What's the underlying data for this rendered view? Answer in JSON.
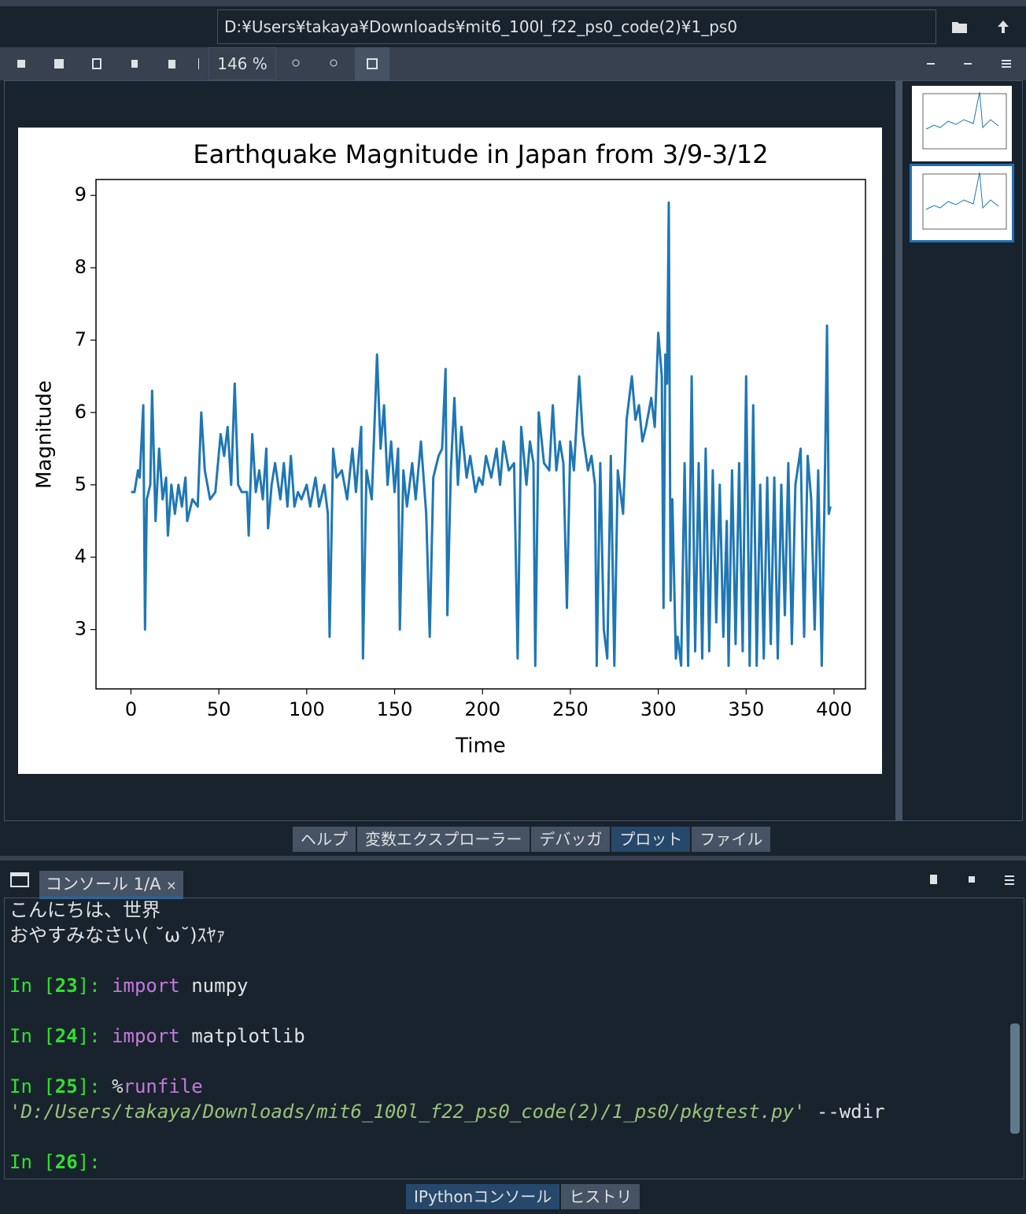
{
  "toolbar": {
    "path": "D:¥Users¥takaya¥Downloads¥mit6_100l_f22_ps0_code(2)¥1_ps0",
    "zoom": "146 %"
  },
  "pane_tabs": [
    {
      "label": "ヘルプ",
      "active": false
    },
    {
      "label": "変数エクスプローラー",
      "active": false
    },
    {
      "label": "デバッガ",
      "active": false
    },
    {
      "label": "プロット",
      "active": true
    },
    {
      "label": "ファイル",
      "active": false
    }
  ],
  "console": {
    "tab": "コンソール 1/A",
    "close": "×",
    "output": [
      "こんにちは、世界",
      "おやすみなさい( ˘ω˘)ｽﾔｧ"
    ],
    "prompts": [
      [
        {
          "text": "In [",
          "kind": "prompt"
        },
        {
          "text": "23",
          "kind": "prompt-num"
        },
        {
          "text": "]: ",
          "kind": "prompt"
        },
        {
          "text": "import",
          "kind": "keyword"
        },
        {
          "text": " numpy",
          "kind": "plain"
        }
      ],
      [
        {
          "text": "In [",
          "kind": "prompt"
        },
        {
          "text": "24",
          "kind": "prompt-num"
        },
        {
          "text": "]: ",
          "kind": "prompt"
        },
        {
          "text": "import",
          "kind": "keyword"
        },
        {
          "text": " matplotlib",
          "kind": "plain"
        }
      ],
      [
        {
          "text": "In [",
          "kind": "prompt"
        },
        {
          "text": "25",
          "kind": "prompt-num"
        },
        {
          "text": "]: ",
          "kind": "prompt"
        },
        {
          "text": "%",
          "kind": "plain"
        },
        {
          "text": "runfile",
          "kind": "keyword"
        },
        {
          "text": " ",
          "kind": "plain"
        },
        {
          "text": "'D:/Users/takaya/Downloads/mit6_100l_f22_ps0_code(2)/1_ps0/pkgtest.py'",
          "kind": "string"
        },
        {
          "text": " --wdir",
          "kind": "plain"
        }
      ],
      [
        {
          "text": "In [",
          "kind": "prompt"
        },
        {
          "text": "26",
          "kind": "prompt-num"
        },
        {
          "text": "]:",
          "kind": "prompt"
        }
      ]
    ]
  },
  "bottom_tabs": [
    {
      "label": "IPythonコンソール",
      "active": true
    },
    {
      "label": "ヒストリ",
      "active": false
    }
  ],
  "chart_data": {
    "type": "line",
    "title": "Earthquake Magnitude in Japan from 3/9-3/12",
    "x_label": "Time",
    "y_label": "Magnitude",
    "color": "#1f77b4",
    "grid": false,
    "xlim": [
      -19.9,
      417.9
    ],
    "ylim": [
      2.18,
      9.22
    ],
    "xticks": [
      0,
      50,
      100,
      150,
      200,
      250,
      300,
      350,
      400
    ],
    "yticks": [
      3,
      4,
      5,
      6,
      7,
      8,
      9
    ],
    "x": [
      0,
      2,
      4,
      5,
      7,
      8,
      9,
      11,
      12,
      14,
      16,
      18,
      20,
      21,
      23,
      25,
      27,
      29,
      31,
      32,
      35,
      38,
      40,
      42,
      45,
      48,
      51,
      53,
      55,
      57,
      59,
      61,
      63,
      66,
      67,
      69,
      71,
      73,
      75,
      77,
      78,
      80,
      82,
      85,
      87,
      89,
      91,
      93,
      95,
      97,
      100,
      102,
      105,
      107,
      110,
      112,
      113,
      115,
      117,
      120,
      123,
      126,
      128,
      131,
      132,
      134,
      137,
      140,
      142,
      144,
      146,
      148,
      150,
      152,
      153,
      155,
      157,
      160,
      162,
      165,
      168,
      170,
      172,
      175,
      177,
      179,
      180,
      182,
      184,
      186,
      188,
      191,
      193,
      196,
      198,
      200,
      202,
      205,
      208,
      210,
      212,
      215,
      218,
      220,
      222,
      225,
      227,
      229,
      230,
      232,
      235,
      238,
      240,
      242,
      244,
      246,
      248,
      250,
      252,
      255,
      257,
      260,
      262,
      264,
      265,
      267,
      269,
      271,
      273,
      275,
      277,
      280,
      282,
      285,
      287,
      289,
      291,
      293,
      296,
      298,
      300,
      302,
      303,
      304,
      305,
      306,
      307,
      308,
      310,
      311,
      313,
      315,
      317,
      319,
      321,
      323,
      325,
      327,
      329,
      331,
      333,
      335,
      337,
      339,
      340,
      342,
      344,
      346,
      348,
      350,
      352,
      354,
      356,
      358,
      360,
      362,
      364,
      366,
      368,
      370,
      372,
      374,
      376,
      378,
      381,
      383,
      385,
      387,
      389,
      391,
      393,
      395,
      396,
      397,
      398
    ],
    "values": [
      4.9,
      4.9,
      5.2,
      5.1,
      6.1,
      3.0,
      4.8,
      5.0,
      6.3,
      4.5,
      5.5,
      4.8,
      5.1,
      4.3,
      5.0,
      4.6,
      5.0,
      4.7,
      5.1,
      4.5,
      4.8,
      4.7,
      6.0,
      5.2,
      4.8,
      4.9,
      5.7,
      5.4,
      5.8,
      5.0,
      6.4,
      5.0,
      4.9,
      4.9,
      4.3,
      5.7,
      4.9,
      5.2,
      4.8,
      5.5,
      4.4,
      5.0,
      5.3,
      4.8,
      5.3,
      4.7,
      5.4,
      4.7,
      4.9,
      4.8,
      5.0,
      4.7,
      5.1,
      4.7,
      5.0,
      4.6,
      2.9,
      5.5,
      5.1,
      5.2,
      4.8,
      5.5,
      4.9,
      5.8,
      2.6,
      5.2,
      4.8,
      6.8,
      5.5,
      6.1,
      5.0,
      5.6,
      4.9,
      5.5,
      3.0,
      5.2,
      4.7,
      5.3,
      4.8,
      5.6,
      4.6,
      2.9,
      5.1,
      5.4,
      5.5,
      6.6,
      3.2,
      5.2,
      6.2,
      5.0,
      5.8,
      5.1,
      5.4,
      4.9,
      5.1,
      5.0,
      5.4,
      5.1,
      5.5,
      5.0,
      5.6,
      5.2,
      5.3,
      2.6,
      5.8,
      5.0,
      5.6,
      5.3,
      2.5,
      6.0,
      5.3,
      5.2,
      6.1,
      5.2,
      5.6,
      5.3,
      3.3,
      5.6,
      5.2,
      6.5,
      5.7,
      5.2,
      5.4,
      5.0,
      2.5,
      5.3,
      3.0,
      2.6,
      5.4,
      2.5,
      5.2,
      4.6,
      5.9,
      6.5,
      5.9,
      6.1,
      5.6,
      5.8,
      6.2,
      5.8,
      7.1,
      6.5,
      3.3,
      6.8,
      6.4,
      8.9,
      3.4,
      4.8,
      2.6,
      2.9,
      2.5,
      5.3,
      2.5,
      6.5,
      2.7,
      5.3,
      2.6,
      5.5,
      2.7,
      5.2,
      3.1,
      5.0,
      2.9,
      4.5,
      2.5,
      5.2,
      2.8,
      5.3,
      2.7,
      6.5,
      2.5,
      6.1,
      2.5,
      5.0,
      2.6,
      5.1,
      2.8,
      5.1,
      2.6,
      5.0,
      3.2,
      5.3,
      2.8,
      5.0,
      5.5,
      2.9,
      5.4,
      4.8,
      3.0,
      5.2,
      2.5,
      5.4,
      7.2,
      4.6,
      4.7
    ]
  }
}
